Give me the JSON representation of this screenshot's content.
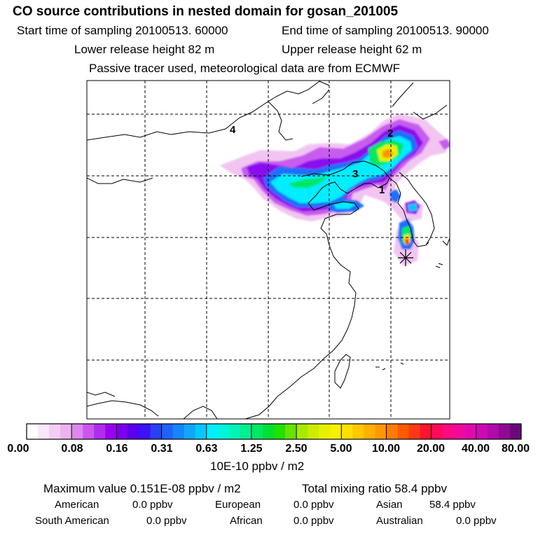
{
  "header": {
    "title": "CO  source contributions in nested domain for gosan_201005",
    "start_label": "Start time of sampling 20100513. 60000",
    "end_label": "End time of sampling 20100513. 90000",
    "lower_label": "Lower release height   82 m",
    "upper_label": "Upper release height   62 m",
    "tracer_label": "Passive tracer used, meteorological data are from ECMWF"
  },
  "chart_data": {
    "type": "heatmap",
    "title": "CO  source contributions in nested domain for gosan_201005",
    "map_labels": [
      "1",
      "2",
      "3",
      "4"
    ],
    "colorbar": {
      "unit": "10E-10 ppbv / m2",
      "tick_labels": [
        "0.00",
        "0.08",
        "0.16",
        "0.31",
        "0.63",
        "1.25",
        "2.50",
        "5.00",
        "10.00",
        "20.00",
        "40.00",
        "80.00"
      ],
      "colors": [
        "#ffffff",
        "#fbe6fb",
        "#f4cdf4",
        "#ecb3ee",
        "#dd88ee",
        "#c858ee",
        "#b02cee",
        "#9a00ee",
        "#7a00ee",
        "#5a00ee",
        "#3a14f4",
        "#2a40f8",
        "#1e62fa",
        "#1684fc",
        "#10a6fe",
        "#06c8ff",
        "#00eeff",
        "#00f4dd",
        "#00f4b6",
        "#00f08e",
        "#00e864",
        "#00e036",
        "#22e000",
        "#66e400",
        "#a8ea00",
        "#cced00",
        "#e6f000",
        "#f8f000",
        "#ffe000",
        "#ffc800",
        "#ffb000",
        "#ff9800",
        "#ff7c00",
        "#ff5a00",
        "#ff3814",
        "#ff1430",
        "#ff0a5a",
        "#ff0a82",
        "#f00a9c",
        "#e00aae",
        "#cc0ab4",
        "#b00aa8",
        "#900a94",
        "#6a0a7a"
      ]
    }
  },
  "footer": {
    "max_label": "Maximum value  0.151E-08 ppbv / m2",
    "total_label": "Total mixing ratio       58.4 ppbv",
    "american_label": "American",
    "american_value": "0.0 ppbv",
    "european_label": "European",
    "european_value": "0.0 ppbv",
    "asian_label": "Asian",
    "asian_value": "58.4 ppbv",
    "southamerican_label": "South American",
    "southamerican_value": "0.0 ppbv",
    "african_label": "African",
    "african_value": "0.0 ppbv",
    "australian_label": "Australian",
    "australian_value": "0.0 ppbv"
  }
}
